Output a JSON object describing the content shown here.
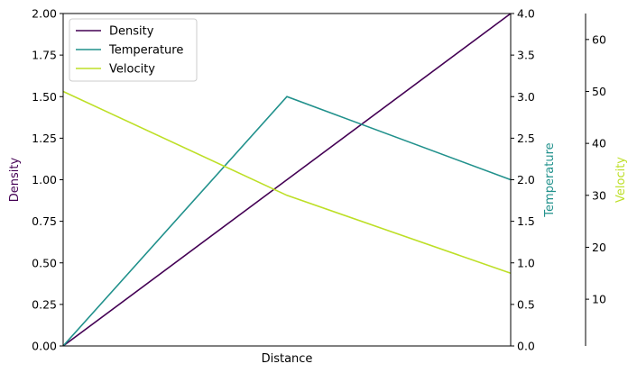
{
  "chart_data": {
    "type": "line",
    "title": "",
    "xlabel": "Distance",
    "x": [
      0,
      1,
      2
    ],
    "xlim": [
      0,
      2
    ],
    "axes": [
      {
        "id": "density",
        "label": "Density",
        "color": "#440154",
        "lim": [
          0,
          2
        ],
        "ticks": [
          0,
          0.25,
          0.5,
          0.75,
          1.0,
          1.25,
          1.5,
          1.75,
          2.0
        ],
        "tick_labels": [
          "0.00",
          "0.25",
          "0.50",
          "0.75",
          "1.00",
          "1.25",
          "1.50",
          "1.75",
          "2.00"
        ],
        "position": "left"
      },
      {
        "id": "temperature",
        "label": "Temperature",
        "color": "#21918c",
        "lim": [
          0,
          4
        ],
        "ticks": [
          0,
          0.5,
          1.0,
          1.5,
          2.0,
          2.5,
          3.0,
          3.5,
          4.0
        ],
        "tick_labels": [
          "0.0",
          "0.5",
          "1.0",
          "1.5",
          "2.0",
          "2.5",
          "3.0",
          "3.5",
          "4.0"
        ],
        "position": "right"
      },
      {
        "id": "velocity",
        "label": "Velocity",
        "color": "#bddf26",
        "lim": [
          1,
          65
        ],
        "ticks": [
          10,
          20,
          30,
          40,
          50,
          60
        ],
        "tick_labels": [
          "10",
          "20",
          "30",
          "40",
          "50",
          "60"
        ],
        "position": "right-offset"
      }
    ],
    "series": [
      {
        "name": "Density",
        "axis": "density",
        "color": "#440154",
        "values": [
          0,
          1,
          2
        ]
      },
      {
        "name": "Temperature",
        "axis": "temperature",
        "color": "#21918c",
        "values": [
          0,
          3,
          2
        ]
      },
      {
        "name": "Velocity",
        "axis": "velocity",
        "color": "#bddf26",
        "values": [
          50,
          30,
          15
        ]
      }
    ],
    "legend": {
      "placement": "top-left",
      "entries": [
        "Density",
        "Temperature",
        "Velocity"
      ]
    }
  }
}
